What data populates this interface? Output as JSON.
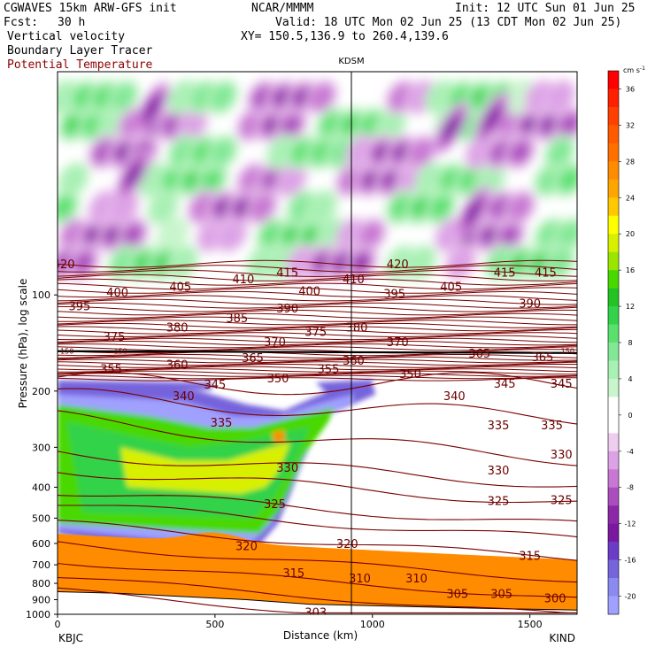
{
  "header": {
    "model": "CGWAVES 15km ARW-GFS init",
    "fcst_label": "Fcst:",
    "fcst_value": "30 h",
    "field1": "Vertical velocity",
    "field2": "Boundary Layer Tracer",
    "field3": "Potential Temperature",
    "org": "NCAR/MMMM",
    "init": "Init: 12 UTC Sun 01 Jun 25",
    "valid": "Valid: 18 UTC Mon 02 Jun 25 (13 CDT Mon 02 Jun 25)",
    "xy": "XY= 150.5,136.9 to 260.4,139.6",
    "field3_color": "#8b0000"
  },
  "chart_data": {
    "type": "heatmap",
    "xlabel": "Distance (km)",
    "ylabel": "Pressure (hPa), log scale",
    "xlim": [
      0,
      1650
    ],
    "ylim_hpa": [
      1000,
      20
    ],
    "y_scale": "log",
    "x_ticks": [
      "0",
      "500",
      "1000",
      "1500"
    ],
    "x_tick_values": [
      0,
      500,
      1000,
      1500
    ],
    "y_ticks": [
      "100",
      "200",
      "300",
      "400",
      "500",
      "600",
      "700",
      "800",
      "900",
      "1000"
    ],
    "y_tick_values": [
      100,
      200,
      300,
      400,
      500,
      600,
      700,
      800,
      900,
      1000
    ],
    "left_station": "KBJC",
    "right_station": "KIND",
    "mid_station": "KDSM",
    "mid_station_km": 935,
    "colorbar": {
      "unit": "cm s",
      "unit_exp": "-1",
      "labels": [
        "36",
        "32",
        "28",
        "24",
        "20",
        "16",
        "12",
        "8",
        "4",
        "0",
        "-4",
        "-8",
        "-12",
        "-16",
        "-20"
      ],
      "label_values": [
        36,
        32,
        28,
        24,
        20,
        16,
        12,
        8,
        4,
        0,
        -4,
        -8,
        -12,
        -16,
        -20
      ],
      "bins": [
        {
          "v": 38,
          "c": "#ff0000"
        },
        {
          "v": 36,
          "c": "#ff2000"
        },
        {
          "v": 34,
          "c": "#ff4000"
        },
        {
          "v": 32,
          "c": "#ff5a00"
        },
        {
          "v": 30,
          "c": "#ff7000"
        },
        {
          "v": 28,
          "c": "#ff8c00"
        },
        {
          "v": 26,
          "c": "#ffa500"
        },
        {
          "v": 24,
          "c": "#ffc800"
        },
        {
          "v": 22,
          "c": "#ffff00"
        },
        {
          "v": 20,
          "c": "#d8f000"
        },
        {
          "v": 18,
          "c": "#9be600"
        },
        {
          "v": 16,
          "c": "#48d800"
        },
        {
          "v": 14,
          "c": "#22c322"
        },
        {
          "v": 12,
          "c": "#32d24a"
        },
        {
          "v": 10,
          "c": "#5ae06e"
        },
        {
          "v": 8,
          "c": "#82e896"
        },
        {
          "v": 6,
          "c": "#a8f0b4"
        },
        {
          "v": 4,
          "c": "#c8f5cc"
        },
        {
          "v": 2,
          "c": "#ffffff"
        },
        {
          "v": 0,
          "c": "#ffffff"
        },
        {
          "v": -2,
          "c": "#eecdf0"
        },
        {
          "v": -4,
          "c": "#dda2e6"
        },
        {
          "v": -6,
          "c": "#c878d2"
        },
        {
          "v": -8,
          "c": "#aa4ebe"
        },
        {
          "v": -10,
          "c": "#8c28a8"
        },
        {
          "v": -12,
          "c": "#7a18a0"
        },
        {
          "v": -14,
          "c": "#6a3cc8"
        },
        {
          "v": -16,
          "c": "#7664dc"
        },
        {
          "v": -18,
          "c": "#8a8af0"
        },
        {
          "v": -20,
          "c": "#a0a0ff"
        }
      ]
    },
    "theta_labels": [
      {
        "t": "420",
        "x": 20,
        "p": 80
      },
      {
        "t": "395",
        "x": 70,
        "p": 108
      },
      {
        "t": "400",
        "x": 190,
        "p": 98
      },
      {
        "t": "405",
        "x": 390,
        "p": 94
      },
      {
        "t": "410",
        "x": 590,
        "p": 89
      },
      {
        "t": "415",
        "x": 730,
        "p": 85
      },
      {
        "t": "400",
        "x": 800,
        "p": 97
      },
      {
        "t": "410",
        "x": 940,
        "p": 89
      },
      {
        "t": "420",
        "x": 1080,
        "p": 80
      },
      {
        "t": "395",
        "x": 1070,
        "p": 99
      },
      {
        "t": "405",
        "x": 1250,
        "p": 94
      },
      {
        "t": "415",
        "x": 1420,
        "p": 85
      },
      {
        "t": "415",
        "x": 1550,
        "p": 85
      },
      {
        "t": "390",
        "x": 1500,
        "p": 106
      },
      {
        "t": "375",
        "x": 180,
        "p": 135
      },
      {
        "t": "380",
        "x": 380,
        "p": 126
      },
      {
        "t": "385",
        "x": 570,
        "p": 118
      },
      {
        "t": "390",
        "x": 730,
        "p": 110
      },
      {
        "t": "370",
        "x": 690,
        "p": 140
      },
      {
        "t": "375",
        "x": 820,
        "p": 130
      },
      {
        "t": "380",
        "x": 950,
        "p": 126
      },
      {
        "t": "370",
        "x": 1080,
        "p": 140
      },
      {
        "t": "360",
        "x": 380,
        "p": 165
      },
      {
        "t": "355",
        "x": 170,
        "p": 170
      },
      {
        "t": "365",
        "x": 620,
        "p": 157
      },
      {
        "t": "350",
        "x": 700,
        "p": 182
      },
      {
        "t": "355",
        "x": 860,
        "p": 170
      },
      {
        "t": "360",
        "x": 940,
        "p": 160
      },
      {
        "t": "365",
        "x": 1340,
        "p": 152
      },
      {
        "t": "365",
        "x": 1540,
        "p": 156
      },
      {
        "t": "350",
        "x": 1120,
        "p": 176
      },
      {
        "t": "345",
        "x": 500,
        "p": 190
      },
      {
        "t": "340",
        "x": 400,
        "p": 207
      },
      {
        "t": "345",
        "x": 1420,
        "p": 189
      },
      {
        "t": "345",
        "x": 1600,
        "p": 189
      },
      {
        "t": "340",
        "x": 1260,
        "p": 207
      },
      {
        "t": "335",
        "x": 520,
        "p": 250
      },
      {
        "t": "335",
        "x": 1400,
        "p": 255
      },
      {
        "t": "335",
        "x": 1570,
        "p": 255
      },
      {
        "t": "330",
        "x": 730,
        "p": 347
      },
      {
        "t": "330",
        "x": 1400,
        "p": 353
      },
      {
        "t": "330",
        "x": 1600,
        "p": 315
      },
      {
        "t": "325",
        "x": 690,
        "p": 450
      },
      {
        "t": "325",
        "x": 1400,
        "p": 440
      },
      {
        "t": "325",
        "x": 1600,
        "p": 437
      },
      {
        "t": "320",
        "x": 600,
        "p": 610
      },
      {
        "t": "320",
        "x": 920,
        "p": 600
      },
      {
        "t": "315",
        "x": 750,
        "p": 740
      },
      {
        "t": "315",
        "x": 1500,
        "p": 655
      },
      {
        "t": "310",
        "x": 960,
        "p": 770
      },
      {
        "t": "310",
        "x": 1140,
        "p": 770
      },
      {
        "t": "305",
        "x": 1270,
        "p": 860
      },
      {
        "t": "305",
        "x": 1410,
        "p": 860
      },
      {
        "t": "300",
        "x": 1580,
        "p": 890
      },
      {
        "t": "303",
        "x": 820,
        "p": 985
      },
      {
        "t": "150",
        "x": 30,
        "p": 150
      },
      {
        "t": "150",
        "x": 200,
        "p": 150
      },
      {
        "t": "150",
        "x": 1620,
        "p": 150
      }
    ]
  }
}
